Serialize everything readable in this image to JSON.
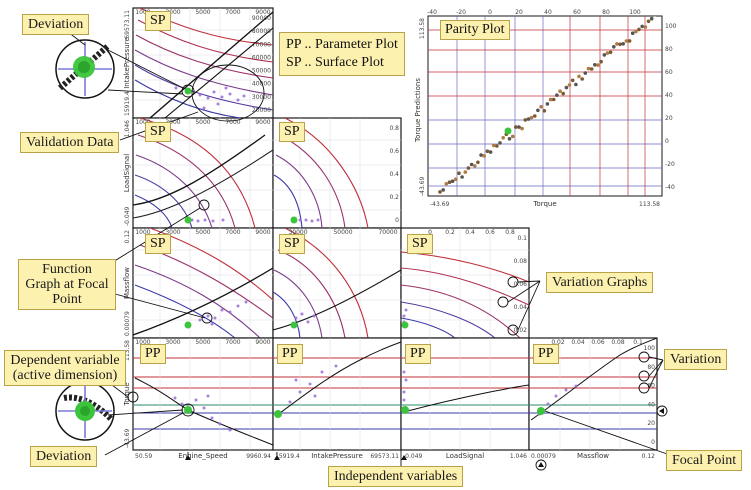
{
  "panel_labels": {
    "sp": "SP",
    "pp": "PP"
  },
  "legend": {
    "pp_line": "PP .. Parameter Plot",
    "sp_line": "SP .. Surface Plot"
  },
  "parity": {
    "title": "Parity Plot",
    "xlabel": "Torque",
    "ylabel": "Torque Predictions",
    "xmin_label": "-43.69",
    "xmax_label": "113.58",
    "ymin_label": "-43.69",
    "ymax_label": "113.58",
    "top_ticks": [
      "-40",
      "-20",
      "0",
      "20",
      "40",
      "60",
      "80",
      "100"
    ],
    "right_ticks": [
      "100",
      "80",
      "60",
      "40",
      "20",
      "0",
      "-20",
      "-40"
    ]
  },
  "callouts": {
    "deviation_top": "Deviation",
    "validation_data": "Validation Data",
    "function_graph": "Function Graph at Focal Point",
    "dependent_variable": "Dependent variable (active dimension)",
    "deviation_bottom": "Deviation",
    "variation_graphs": "Variation Graphs",
    "variation": "Variation",
    "focal_point": "Focal Point",
    "independent_variables": "Independent variables"
  },
  "axes": {
    "row_labels": [
      "IntakePressure",
      "LoadSignal",
      "Massflow",
      "Torque"
    ],
    "row_ranges": [
      [
        "69573.11",
        "15919.4"
      ],
      [
        "1.046",
        "-0.049"
      ],
      [
        "0.12",
        "0.00079"
      ],
      [
        "113.58",
        "-43.69"
      ]
    ],
    "col_labels": [
      "Engine_Speed",
      "IntakePressure",
      "LoadSignal",
      "Massflow"
    ],
    "col_ranges": [
      [
        "50.59",
        "9960.94"
      ],
      [
        "15919.4",
        "69573.11"
      ],
      [
        "-0.049",
        "1.046"
      ],
      [
        "0.00079",
        "0.12"
      ]
    ],
    "speed_ticks": [
      "1000",
      "3000",
      "5000",
      "7000",
      "9000"
    ],
    "pressure_ticks": [
      "30000",
      "50000",
      "70000"
    ],
    "load_ticks": [
      "0",
      "0.2",
      "0.4",
      "0.6",
      "0.8"
    ],
    "massflow_ticks": [
      "0.02",
      "0.04",
      "0.06",
      "0.08",
      "0.1"
    ],
    "pressure_right_ticks": [
      "90000",
      "80000",
      "70000",
      "60000",
      "50000",
      "40000",
      "30000",
      "20000"
    ],
    "load_right_ticks": [
      "0.8",
      "0.6",
      "0.4",
      "0.2",
      "0"
    ],
    "massflow_right_ticks": [
      "0.1",
      "0.08",
      "0.06",
      "0.04",
      "0.02"
    ],
    "torque_right_ticks": [
      "100",
      "80",
      "60",
      "40",
      "20",
      "0"
    ]
  },
  "colors": {
    "callout_fill": "#fdf1b0",
    "red_line": "#c0303a",
    "blue_line": "#3a3aa8",
    "focal_green": "#3cc43c",
    "scatter": "#9b6bd6"
  }
}
